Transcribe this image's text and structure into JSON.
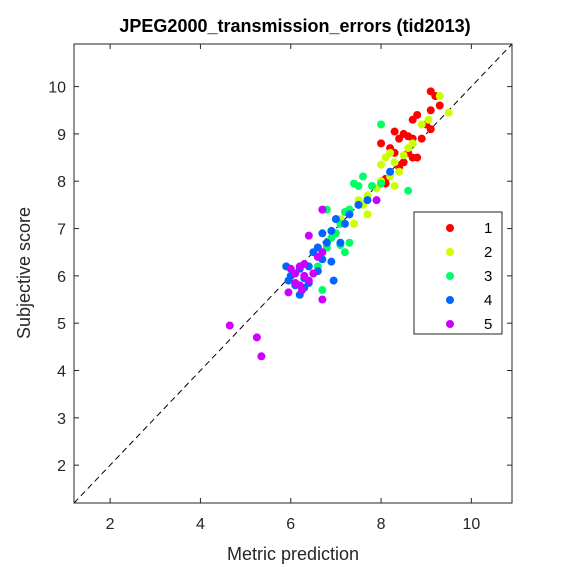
{
  "chart_data": {
    "type": "scatter",
    "title": "JPEG2000_transmission_errors (tid2013)",
    "xlabel": "Metric prediction",
    "ylabel": "Subjective score",
    "xlim": [
      1.2,
      10.9
    ],
    "ylim": [
      1.2,
      10.9
    ],
    "xticks": [
      2,
      4,
      6,
      8,
      10
    ],
    "yticks": [
      2,
      3,
      4,
      5,
      6,
      7,
      8,
      9,
      10
    ],
    "grid": false,
    "box": true,
    "reference_line": {
      "style": "dashed",
      "from": [
        1.2,
        1.2
      ],
      "to": [
        10.9,
        10.9
      ]
    },
    "legend": {
      "placement": "right"
    },
    "series": [
      {
        "name": "1",
        "color": "#ff0000",
        "points": [
          [
            9.1,
            9.9
          ],
          [
            9.2,
            9.8
          ],
          [
            9.3,
            9.6
          ],
          [
            9.1,
            9.5
          ],
          [
            8.8,
            9.4
          ],
          [
            8.7,
            9.3
          ],
          [
            9.0,
            9.2
          ],
          [
            9.1,
            9.1
          ],
          [
            8.5,
            9.0
          ],
          [
            8.3,
            9.05
          ],
          [
            8.7,
            8.9
          ],
          [
            8.6,
            8.95
          ],
          [
            8.4,
            8.9
          ],
          [
            8.9,
            8.9
          ],
          [
            8.0,
            8.8
          ],
          [
            8.2,
            8.7
          ],
          [
            8.3,
            8.6
          ],
          [
            8.5,
            8.4
          ],
          [
            8.4,
            8.3
          ],
          [
            8.7,
            8.5
          ],
          [
            8.6,
            8.6
          ],
          [
            8.8,
            8.5
          ],
          [
            8.1,
            8.05
          ],
          [
            8.0,
            8.0
          ],
          [
            8.1,
            7.95
          ]
        ]
      },
      {
        "name": "2",
        "color": "#ccff00",
        "points": [
          [
            9.3,
            9.8
          ],
          [
            9.5,
            9.45
          ],
          [
            9.05,
            9.3
          ],
          [
            8.9,
            9.2
          ],
          [
            8.7,
            8.8
          ],
          [
            8.6,
            8.7
          ],
          [
            8.2,
            8.6
          ],
          [
            8.5,
            8.55
          ],
          [
            8.1,
            8.5
          ],
          [
            8.3,
            8.4
          ],
          [
            8.0,
            8.35
          ],
          [
            8.4,
            8.2
          ],
          [
            8.2,
            8.1
          ],
          [
            8.0,
            8.0
          ],
          [
            7.9,
            7.85
          ],
          [
            8.3,
            7.9
          ],
          [
            7.7,
            7.7
          ],
          [
            7.5,
            7.6
          ],
          [
            7.6,
            7.5
          ],
          [
            7.3,
            7.4
          ],
          [
            7.7,
            7.3
          ],
          [
            7.1,
            7.2
          ],
          [
            7.4,
            7.1
          ]
        ]
      },
      {
        "name": "3",
        "color": "#00ff66",
        "points": [
          [
            8.0,
            9.2
          ],
          [
            8.6,
            7.8
          ],
          [
            8.0,
            7.95
          ],
          [
            7.8,
            7.9
          ],
          [
            7.6,
            8.1
          ],
          [
            7.4,
            7.95
          ],
          [
            7.5,
            7.9
          ],
          [
            7.3,
            7.4
          ],
          [
            7.2,
            7.35
          ],
          [
            7.0,
            7.2
          ],
          [
            7.1,
            7.1
          ],
          [
            7.0,
            6.9
          ],
          [
            6.9,
            6.8
          ],
          [
            6.8,
            6.6
          ],
          [
            7.3,
            6.7
          ],
          [
            6.8,
            7.4
          ],
          [
            6.6,
            6.2
          ],
          [
            6.7,
            5.7
          ],
          [
            7.2,
            6.5
          ],
          [
            7.1,
            6.65
          ]
        ]
      },
      {
        "name": "4",
        "color": "#0066ff",
        "points": [
          [
            8.2,
            8.2
          ],
          [
            7.7,
            7.6
          ],
          [
            7.5,
            7.5
          ],
          [
            7.3,
            7.3
          ],
          [
            7.2,
            7.1
          ],
          [
            7.0,
            7.2
          ],
          [
            6.9,
            6.95
          ],
          [
            6.7,
            6.9
          ],
          [
            6.8,
            6.7
          ],
          [
            6.6,
            6.6
          ],
          [
            6.5,
            6.5
          ],
          [
            6.7,
            6.35
          ],
          [
            6.4,
            6.2
          ],
          [
            6.9,
            6.3
          ],
          [
            6.6,
            6.1
          ],
          [
            6.2,
            6.15
          ],
          [
            5.9,
            6.2
          ],
          [
            5.95,
            5.9
          ],
          [
            6.3,
            5.95
          ],
          [
            6.1,
            5.8
          ],
          [
            6.2,
            5.6
          ],
          [
            6.4,
            5.85
          ],
          [
            6.0,
            6.0
          ],
          [
            6.3,
            5.75
          ],
          [
            6.95,
            5.9
          ],
          [
            7.1,
            6.7
          ]
        ]
      },
      {
        "name": "5",
        "color": "#cc00ff",
        "points": [
          [
            7.9,
            7.6
          ],
          [
            6.7,
            7.4
          ],
          [
            6.4,
            6.85
          ],
          [
            6.6,
            6.4
          ],
          [
            6.7,
            6.5
          ],
          [
            6.3,
            6.25
          ],
          [
            6.2,
            6.2
          ],
          [
            6.5,
            6.05
          ],
          [
            6.0,
            6.15
          ],
          [
            6.4,
            5.9
          ],
          [
            6.1,
            5.85
          ],
          [
            5.95,
            5.65
          ],
          [
            6.2,
            5.8
          ],
          [
            6.25,
            5.7
          ],
          [
            6.7,
            5.5
          ],
          [
            4.65,
            4.95
          ],
          [
            5.25,
            4.7
          ],
          [
            5.35,
            4.3
          ],
          [
            6.3,
            6.0
          ],
          [
            6.1,
            6.05
          ]
        ]
      }
    ]
  }
}
